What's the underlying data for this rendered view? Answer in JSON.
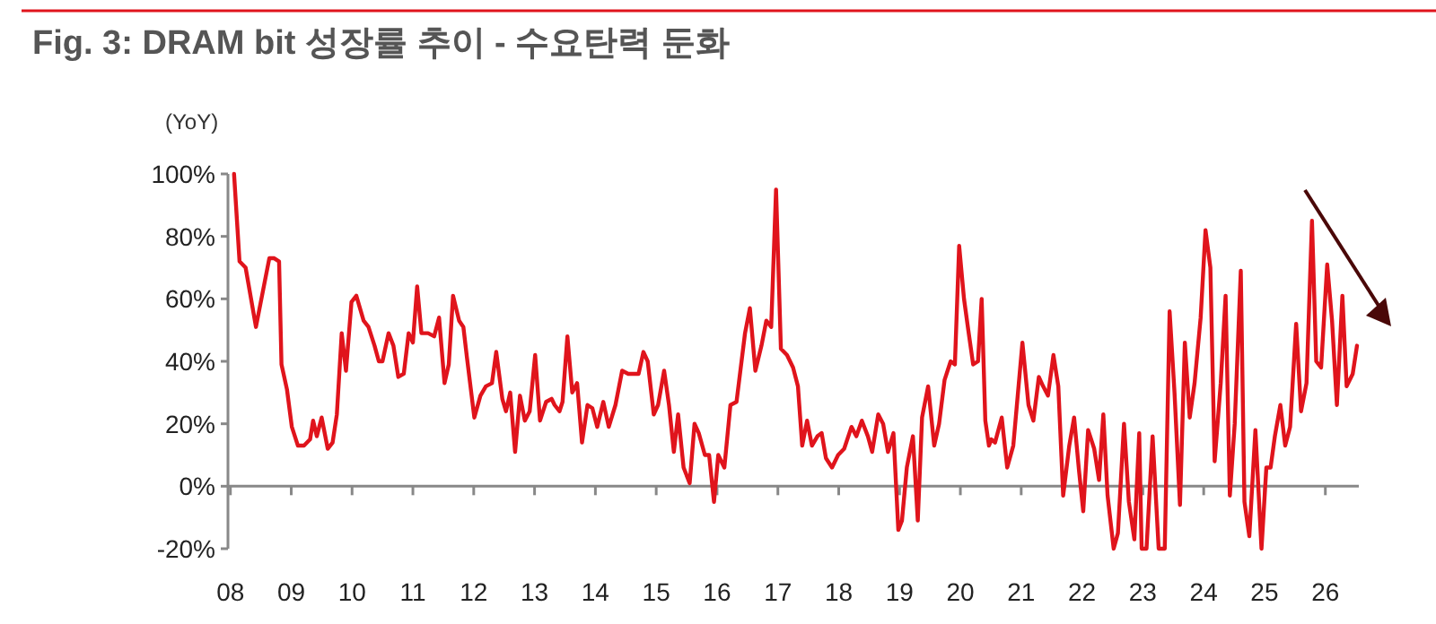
{
  "chart_data": {
    "type": "line",
    "title": "Fig. 3: DRAM bit 성장률 추이 - 수요탄력 둔화",
    "ylabel": "(YoY)",
    "xlim": [
      2007.96,
      2026.55
    ],
    "xticks": [
      {
        "value": 2008,
        "label": "08"
      },
      {
        "value": 2009,
        "label": "09"
      },
      {
        "value": 2010,
        "label": "10"
      },
      {
        "value": 2011,
        "label": "11"
      },
      {
        "value": 2012,
        "label": "12"
      },
      {
        "value": 2013,
        "label": "13"
      },
      {
        "value": 2014,
        "label": "14"
      },
      {
        "value": 2015,
        "label": "15"
      },
      {
        "value": 2016,
        "label": "16"
      },
      {
        "value": 2017,
        "label": "17"
      },
      {
        "value": 2018,
        "label": "18"
      },
      {
        "value": 2019,
        "label": "19"
      },
      {
        "value": 2020,
        "label": "20"
      },
      {
        "value": 2021,
        "label": "21"
      },
      {
        "value": 2022,
        "label": "22"
      },
      {
        "value": 2023,
        "label": "23"
      },
      {
        "value": 2024,
        "label": "24"
      },
      {
        "value": 2025,
        "label": "25"
      },
      {
        "value": 2026,
        "label": "26"
      }
    ],
    "ylim": [
      -20,
      100
    ],
    "yticks": [
      {
        "value": -20,
        "label": "-20%"
      },
      {
        "value": 0,
        "label": "0%"
      },
      {
        "value": 20,
        "label": "20%"
      },
      {
        "value": 40,
        "label": "40%"
      },
      {
        "value": 60,
        "label": "60%"
      },
      {
        "value": 80,
        "label": "80%"
      },
      {
        "value": 100,
        "label": "100%"
      }
    ],
    "marker": "none",
    "line_style": "solid",
    "series": [
      {
        "color": "#e0141c",
        "x": [
          2008.06,
          2008.15,
          2008.25,
          2008.42,
          2008.57,
          2008.64,
          2008.72,
          2008.8,
          2008.84,
          2008.93,
          2009.01,
          2009.11,
          2009.21,
          2009.31,
          2009.36,
          2009.42,
          2009.5,
          2009.6,
          2009.68,
          2009.75,
          2009.83,
          2009.9,
          2009.99,
          2010.07,
          2010.19,
          2010.27,
          2010.37,
          2010.44,
          2010.5,
          2010.6,
          2010.68,
          2010.76,
          2010.85,
          2010.93,
          2011.0,
          2011.07,
          2011.14,
          2011.25,
          2011.35,
          2011.43,
          2011.52,
          2011.59,
          2011.66,
          2011.76,
          2011.83,
          2011.89,
          2012.01,
          2012.11,
          2012.2,
          2012.3,
          2012.37,
          2012.47,
          2012.53,
          2012.6,
          2012.68,
          2012.76,
          2012.84,
          2012.92,
          2013.01,
          2013.09,
          2013.19,
          2013.28,
          2013.33,
          2013.41,
          2013.46,
          2013.54,
          2013.62,
          2013.7,
          2013.78,
          2013.87,
          2013.95,
          2014.03,
          2014.13,
          2014.22,
          2014.33,
          2014.44,
          2014.54,
          2014.64,
          2014.71,
          2014.79,
          2014.86,
          2014.96,
          2015.03,
          2015.13,
          2015.21,
          2015.29,
          2015.36,
          2015.45,
          2015.55,
          2015.63,
          2015.7,
          2015.8,
          2015.87,
          2015.95,
          2016.02,
          2016.12,
          2016.22,
          2016.32,
          2016.46,
          2016.54,
          2016.63,
          2016.73,
          2016.81,
          2016.89,
          2016.97,
          2017.05,
          2017.15,
          2017.25,
          2017.33,
          2017.4,
          2017.48,
          2017.56,
          2017.65,
          2017.72,
          2017.79,
          2017.89,
          2017.99,
          2018.09,
          2018.21,
          2018.29,
          2018.38,
          2018.48,
          2018.55,
          2018.65,
          2018.73,
          2018.81,
          2018.9,
          2018.98,
          2019.04,
          2019.12,
          2019.22,
          2019.3,
          2019.37,
          2019.47,
          2019.57,
          2019.65,
          2019.74,
          2019.84,
          2019.91,
          2019.98,
          2020.06,
          2020.13,
          2020.21,
          2020.29,
          2020.35,
          2020.41,
          2020.47,
          2020.51,
          2020.57,
          2020.68,
          2020.77,
          2020.87,
          2021.02,
          2021.12,
          2021.2,
          2021.29,
          2021.36,
          2021.44,
          2021.53,
          2021.61,
          2021.69,
          2021.79,
          2021.87,
          2021.95,
          2022.02,
          2022.1,
          2022.2,
          2022.28,
          2022.35,
          2022.42,
          2022.52,
          2022.59,
          2022.69,
          2022.77,
          2022.86,
          2022.94,
          2022.98,
          2023.06,
          2023.16,
          2023.26,
          2023.36,
          2023.44,
          2023.52,
          2023.61,
          2023.69,
          2023.77,
          2023.85,
          2023.95,
          2024.03,
          2024.11,
          2024.18,
          2024.28,
          2024.36,
          2024.43,
          2024.51,
          2024.61,
          2024.67,
          2024.75,
          2024.85,
          2024.95,
          2025.03,
          2025.1,
          2025.17,
          2025.26,
          2025.34,
          2025.42,
          2025.52,
          2025.6,
          2025.69,
          2025.78,
          2025.85,
          2025.93,
          2026.03,
          2026.11,
          2026.19,
          2026.28,
          2026.35,
          2026.45,
          2026.52
        ],
        "values": [
          100,
          72,
          70,
          51,
          66,
          73,
          73,
          72,
          39,
          31,
          19,
          13,
          13,
          15,
          21,
          16,
          22,
          12,
          14,
          23,
          49,
          37,
          59,
          61,
          53,
          51,
          45,
          40,
          40,
          49,
          45,
          35,
          36,
          49,
          46,
          64,
          49,
          49,
          48,
          54,
          33,
          39,
          61,
          53,
          51,
          41,
          22,
          29,
          32,
          33,
          43,
          28,
          24,
          30,
          11,
          29,
          21,
          24,
          42,
          21,
          27,
          28,
          26,
          24,
          27,
          48,
          30,
          33,
          14,
          26,
          25,
          19,
          27,
          19,
          26,
          37,
          36,
          36,
          36,
          43,
          40,
          23,
          26,
          37,
          26,
          11,
          23,
          6,
          1,
          20,
          17,
          10,
          10,
          -5,
          10,
          6,
          26,
          27,
          49,
          57,
          37,
          45,
          53,
          51,
          95,
          44,
          42,
          38,
          32,
          13,
          21,
          13,
          16,
          17,
          9,
          6,
          10,
          12,
          19,
          16,
          21,
          16,
          11,
          23,
          20,
          11,
          17,
          -14,
          -11,
          6,
          16,
          -11,
          22,
          32,
          13,
          20,
          34,
          40,
          39,
          77,
          60,
          50,
          39,
          40,
          60,
          21,
          13,
          15,
          14,
          22,
          6,
          13,
          46,
          26,
          21,
          35,
          32,
          29,
          42,
          32,
          -3,
          13,
          22,
          5,
          -8,
          18,
          12,
          2,
          23,
          -3,
          -20,
          -15,
          20,
          -5,
          -17,
          17,
          -20,
          -20,
          16,
          -20,
          -20,
          56,
          30,
          -6,
          46,
          22,
          33,
          54,
          82,
          70,
          8,
          33,
          61,
          -3,
          20,
          69,
          -5,
          -16,
          18,
          -20,
          6,
          6,
          16,
          26,
          13,
          19,
          52,
          24,
          33,
          85,
          40,
          38,
          71,
          53,
          26,
          61,
          32,
          36,
          45
        ]
      }
    ]
  }
}
